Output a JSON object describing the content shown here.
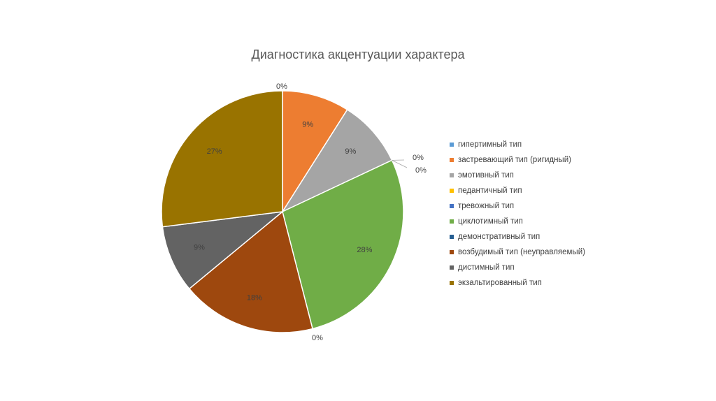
{
  "chart_data": {
    "type": "pie",
    "title": "Диагностика акцентуации характера",
    "categories": [
      "гипертимный тип",
      "застревающий тип (ригидный)",
      "эмотивный тип",
      "педантичный тип",
      "тревожный тип",
      "циклотимный тип",
      "демонстративный тип",
      "возбудимый тип (неуправляемый)",
      "дистимный тип",
      "экзальтированный тип"
    ],
    "values": [
      0,
      9,
      9,
      0,
      0,
      28,
      0,
      18,
      9,
      27
    ],
    "labels": [
      "0%",
      "9%",
      "9%",
      "0%",
      "0%",
      "28%",
      "0%",
      "18%",
      "9%",
      "27%"
    ],
    "colors": [
      "#5B9BD5",
      "#ED7D31",
      "#A5A5A5",
      "#FFC000",
      "#4472C4",
      "#70AD47",
      "#255E91",
      "#9E480E",
      "#636363",
      "#997300"
    ],
    "legend_position": "right"
  }
}
